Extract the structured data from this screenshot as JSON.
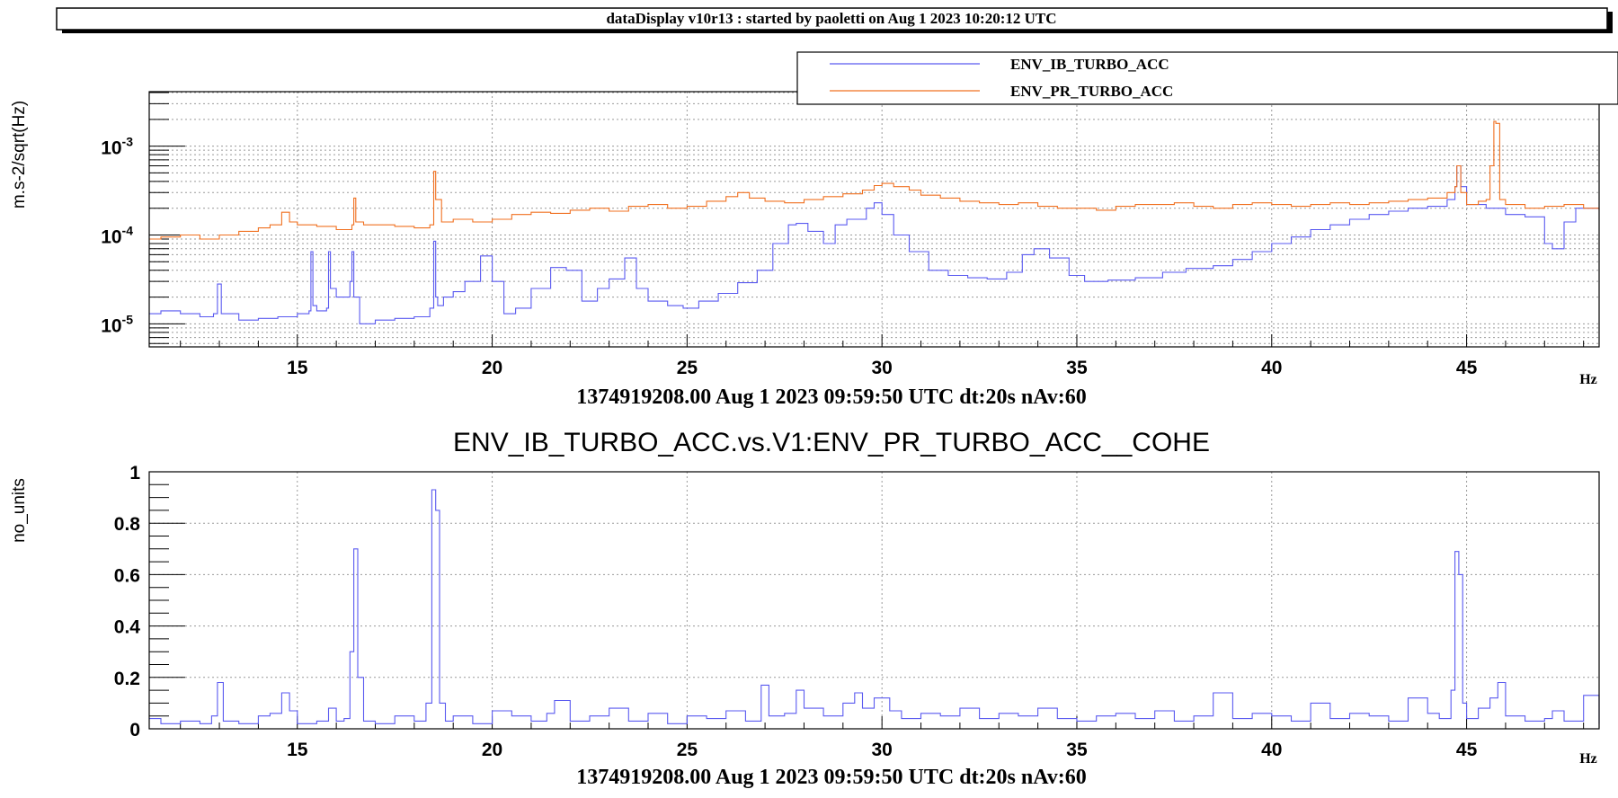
{
  "header": {
    "title": "dataDisplay v10r13 : started by paoletti on Aug  1 2023 10:20:12 UTC"
  },
  "colors": {
    "ib": "#5a5af0",
    "pr": "#f07020",
    "grid": "#9a9a9a",
    "frame": "#000000"
  },
  "chart_data": [
    {
      "type": "line",
      "title": "",
      "ylabel": "m.s-2/sqrt(Hz)",
      "xlabel": "1374919208.00 Aug 1 2023 09:59:50 UTC dt:20s nAv:60",
      "x_unit": "Hz",
      "yscale": "log",
      "xlim": [
        11.2,
        48.4
      ],
      "ylim": [
        5.5e-06,
        0.0041
      ],
      "xticks": [
        "15",
        "20",
        "25",
        "30",
        "35",
        "40",
        "45"
      ],
      "yticks": [
        {
          "base": "10",
          "exp": "-5",
          "value": 1e-05
        },
        {
          "base": "10",
          "exp": "-4",
          "value": 0.0001
        },
        {
          "base": "10",
          "exp": "-3",
          "value": 0.001
        }
      ],
      "grid": true,
      "legend": {
        "position": "top-right",
        "entries": [
          "ENV_IB_TURBO_ACC",
          "ENV_PR_TURBO_ACC"
        ]
      },
      "series": [
        {
          "name": "ENV_IB_TURBO_ACC",
          "color": "#5a5af0",
          "x": [
            11.2,
            11.5,
            12.0,
            12.5,
            12.85,
            12.95,
            13.05,
            13.5,
            14.0,
            14.5,
            15.0,
            15.3,
            15.35,
            15.4,
            15.5,
            15.75,
            15.8,
            15.85,
            16.0,
            16.35,
            16.4,
            16.45,
            16.6,
            17.0,
            17.5,
            18.0,
            18.4,
            18.5,
            18.55,
            18.6,
            18.75,
            19.0,
            19.3,
            19.7,
            20.0,
            20.3,
            20.6,
            21.0,
            21.5,
            21.9,
            22.3,
            22.7,
            23.0,
            23.4,
            23.7,
            24.0,
            24.5,
            24.9,
            25.3,
            25.8,
            26.3,
            26.8,
            27.2,
            27.6,
            27.8,
            28.1,
            28.5,
            28.8,
            29.1,
            29.6,
            29.8,
            30.0,
            30.3,
            30.7,
            31.2,
            31.7,
            32.2,
            32.7,
            33.2,
            33.6,
            33.9,
            34.3,
            34.8,
            35.2,
            35.8,
            36.5,
            37.2,
            37.8,
            38.5,
            39.0,
            39.5,
            40.0,
            40.5,
            41.0,
            41.5,
            42.0,
            42.5,
            43.0,
            43.5,
            44.0,
            44.5,
            44.7,
            44.75,
            44.85,
            45.0,
            45.5,
            46.0,
            46.5,
            47.0,
            47.2,
            47.5,
            47.8,
            48.4
          ],
          "y": [
            1.3e-05,
            1.4e-05,
            1.3e-05,
            1.2e-05,
            1.3e-05,
            2.8e-05,
            1.3e-05,
            1.1e-05,
            1.15e-05,
            1.2e-05,
            1.3e-05,
            1.4e-05,
            6.5e-05,
            1.6e-05,
            1.4e-05,
            1.5e-05,
            6.5e-05,
            2.5e-05,
            2e-05,
            3e-05,
            6.5e-05,
            2e-05,
            1e-05,
            1.1e-05,
            1.15e-05,
            1.2e-05,
            1.5e-05,
            8.5e-05,
            2e-05,
            1.6e-05,
            2e-05,
            2.3e-05,
            3e-05,
            5.8e-05,
            3e-05,
            1.3e-05,
            1.5e-05,
            2.5e-05,
            4.3e-05,
            4e-05,
            1.8e-05,
            2.5e-05,
            3.2e-05,
            5.5e-05,
            2.5e-05,
            1.8e-05,
            1.6e-05,
            1.5e-05,
            1.8e-05,
            2.2e-05,
            2.9e-05,
            4e-05,
            8e-05,
            0.00013,
            0.000135,
            0.00011,
            8e-05,
            0.00013,
            0.00015,
            0.0002,
            0.00023,
            0.00017,
            0.0001,
            6.5e-05,
            4e-05,
            3.5e-05,
            3.3e-05,
            3.2e-05,
            3.8e-05,
            6e-05,
            7e-05,
            5.5e-05,
            3.5e-05,
            3e-05,
            3.1e-05,
            3.3e-05,
            3.8e-05,
            4.2e-05,
            4.5e-05,
            5.3e-05,
            6.5e-05,
            8e-05,
            9.5e-05,
            0.000115,
            0.00013,
            0.00015,
            0.00017,
            0.000185,
            0.0002,
            0.00021,
            0.00025,
            0.00035,
            0.0006,
            0.00035,
            0.00022,
            0.0002,
            0.00017,
            0.00016,
            8e-05,
            7e-05,
            0.00014,
            0.0002,
            0.0002
          ]
        },
        {
          "name": "ENV_PR_TURBO_ACC",
          "color": "#f07020",
          "x": [
            11.2,
            11.5,
            12.0,
            12.5,
            13.0,
            13.5,
            14.0,
            14.3,
            14.6,
            14.8,
            15.0,
            15.5,
            16.0,
            16.4,
            16.45,
            16.5,
            16.7,
            17.0,
            17.5,
            18.0,
            18.4,
            18.5,
            18.55,
            18.7,
            19.0,
            19.5,
            20.0,
            20.5,
            21.0,
            21.5,
            22.0,
            22.5,
            23.0,
            23.5,
            24.0,
            24.5,
            25.0,
            25.5,
            26.0,
            26.3,
            26.6,
            27.0,
            27.5,
            28.0,
            28.5,
            29.0,
            29.5,
            29.8,
            30.0,
            30.3,
            30.7,
            31.0,
            31.5,
            32.0,
            32.5,
            33.0,
            33.5,
            34.0,
            34.5,
            35.0,
            35.5,
            36.0,
            36.5,
            37.0,
            37.5,
            38.0,
            38.5,
            39.0,
            39.5,
            40.0,
            40.5,
            41.0,
            41.5,
            42.0,
            42.5,
            43.0,
            43.5,
            44.0,
            44.5,
            44.7,
            44.75,
            44.85,
            45.0,
            45.3,
            45.5,
            45.6,
            45.7,
            45.75,
            45.85,
            46.0,
            46.5,
            47.0,
            47.5,
            48.0,
            48.4
          ],
          "y": [
            9e-05,
            9.5e-05,
            0.0001,
            9e-05,
            0.0001,
            0.00011,
            0.00012,
            0.00013,
            0.00018,
            0.00014,
            0.00013,
            0.000125,
            0.000115,
            0.00013,
            0.00026,
            0.00014,
            0.00013,
            0.00013,
            0.000125,
            0.00012,
            0.00013,
            0.00052,
            0.00025,
            0.00014,
            0.00015,
            0.00014,
            0.00015,
            0.00017,
            0.00018,
            0.000175,
            0.00019,
            0.0002,
            0.000185,
            0.00021,
            0.00022,
            0.0002,
            0.00021,
            0.00024,
            0.00027,
            0.0003,
            0.00026,
            0.00024,
            0.00023,
            0.00025,
            0.00027,
            0.00029,
            0.00032,
            0.00036,
            0.00038,
            0.00035,
            0.00032,
            0.00028,
            0.00026,
            0.00024,
            0.00023,
            0.00022,
            0.00023,
            0.00021,
            0.0002,
            0.0002,
            0.00019,
            0.00021,
            0.00022,
            0.00022,
            0.00023,
            0.00021,
            0.0002,
            0.00022,
            0.00023,
            0.00022,
            0.00021,
            0.00022,
            0.00023,
            0.00022,
            0.00023,
            0.00024,
            0.00025,
            0.00026,
            0.0003,
            0.00035,
            0.0006,
            0.0003,
            0.00022,
            0.00024,
            0.00025,
            0.0006,
            0.0019,
            0.0018,
            0.00025,
            0.00022,
            0.0002,
            0.00021,
            0.00022,
            0.0002,
            0.00019
          ]
        }
      ]
    },
    {
      "type": "line",
      "title": "ENV_IB_TURBO_ACC.vs.V1:ENV_PR_TURBO_ACC__COHE",
      "ylabel": "no_units",
      "xlabel": "1374919208.00 Aug 1 2023 09:59:50 UTC dt:20s nAv:60",
      "x_unit": "Hz",
      "yscale": "linear",
      "xlim": [
        11.2,
        48.4
      ],
      "ylim": [
        0,
        1
      ],
      "xticks": [
        "15",
        "20",
        "25",
        "30",
        "35",
        "40",
        "45"
      ],
      "yticks": [
        "0",
        "0.2",
        "0.4",
        "0.6",
        "0.8",
        "1"
      ],
      "grid": true,
      "series": [
        {
          "name": "COHE",
          "color": "#5a5af0",
          "x": [
            11.2,
            11.5,
            12.0,
            12.5,
            12.8,
            12.95,
            13.1,
            13.5,
            14.0,
            14.3,
            14.6,
            14.8,
            15.0,
            15.5,
            15.8,
            16.0,
            16.2,
            16.35,
            16.45,
            16.55,
            16.7,
            17.0,
            17.5,
            18.0,
            18.3,
            18.45,
            18.55,
            18.65,
            18.8,
            19.0,
            19.5,
            20.0,
            20.5,
            21.0,
            21.4,
            21.6,
            22.0,
            22.5,
            23.0,
            23.5,
            24.0,
            24.5,
            25.0,
            25.5,
            26.0,
            26.5,
            26.9,
            27.1,
            27.5,
            27.8,
            28.0,
            28.5,
            29.0,
            29.3,
            29.5,
            29.8,
            30.2,
            30.5,
            31.0,
            31.5,
            32.0,
            32.5,
            33.0,
            33.5,
            34.0,
            34.5,
            35.0,
            35.5,
            36.0,
            36.5,
            37.0,
            37.5,
            38.0,
            38.5,
            39.0,
            39.5,
            40.0,
            40.5,
            41.0,
            41.5,
            42.0,
            42.5,
            43.0,
            43.5,
            44.0,
            44.3,
            44.6,
            44.7,
            44.8,
            44.9,
            45.0,
            45.3,
            45.6,
            45.8,
            46.0,
            46.5,
            47.0,
            47.2,
            47.5,
            48.0,
            48.4
          ],
          "y": [
            0.04,
            0.02,
            0.03,
            0.02,
            0.05,
            0.18,
            0.03,
            0.02,
            0.05,
            0.06,
            0.14,
            0.07,
            0.02,
            0.03,
            0.08,
            0.03,
            0.04,
            0.3,
            0.7,
            0.2,
            0.03,
            0.02,
            0.05,
            0.03,
            0.1,
            0.93,
            0.85,
            0.1,
            0.03,
            0.05,
            0.02,
            0.07,
            0.05,
            0.03,
            0.06,
            0.11,
            0.03,
            0.05,
            0.08,
            0.03,
            0.06,
            0.02,
            0.05,
            0.04,
            0.07,
            0.03,
            0.17,
            0.05,
            0.06,
            0.15,
            0.08,
            0.05,
            0.1,
            0.14,
            0.08,
            0.12,
            0.07,
            0.04,
            0.06,
            0.05,
            0.08,
            0.04,
            0.06,
            0.05,
            0.08,
            0.04,
            0.03,
            0.05,
            0.06,
            0.04,
            0.07,
            0.03,
            0.05,
            0.14,
            0.04,
            0.06,
            0.05,
            0.03,
            0.1,
            0.04,
            0.06,
            0.05,
            0.03,
            0.12,
            0.06,
            0.04,
            0.15,
            0.69,
            0.6,
            0.1,
            0.04,
            0.08,
            0.12,
            0.18,
            0.05,
            0.03,
            0.04,
            0.07,
            0.03,
            0.13,
            0.02
          ]
        }
      ]
    }
  ]
}
